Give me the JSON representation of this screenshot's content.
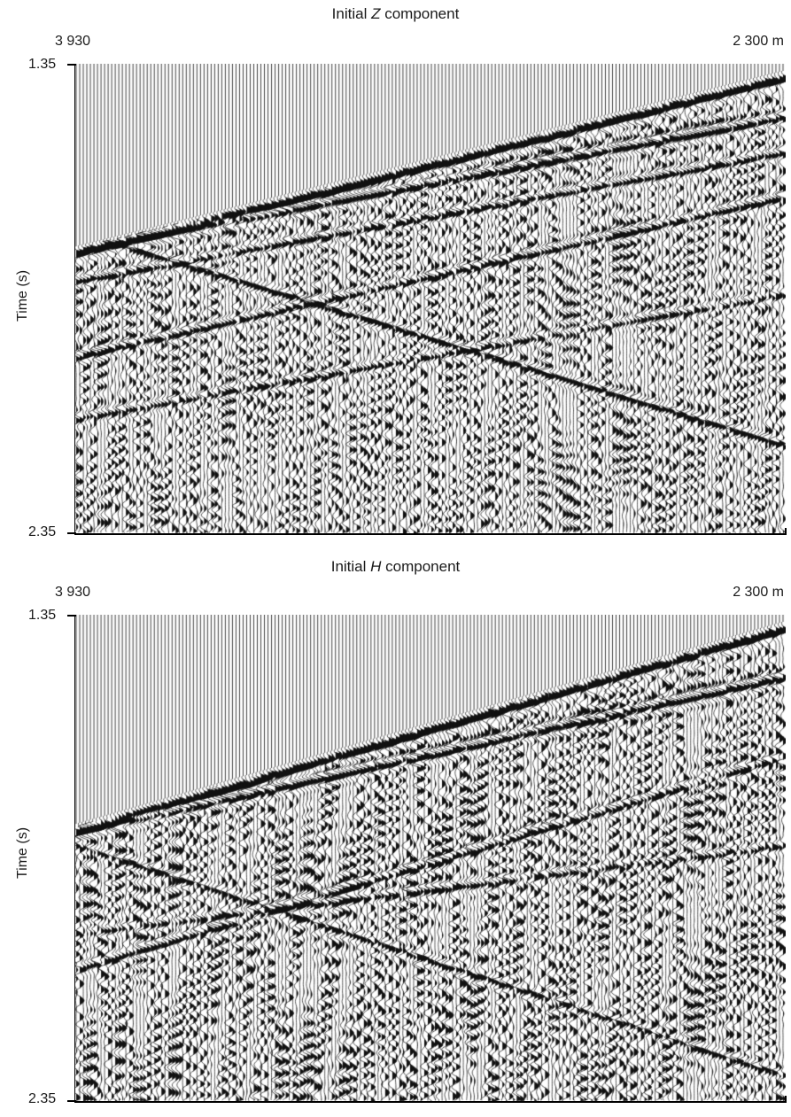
{
  "panels": [
    {
      "title_pre": "Initial ",
      "title_var": "Z",
      "title_post": " component",
      "x_left_label": "3 930",
      "x_right_label": "2 300 m",
      "y_top_label": "1.35",
      "y_bottom_label": "2.35",
      "y_axis_label": "Time (s)"
    },
    {
      "title_pre": "Initial ",
      "title_var": "H",
      "title_post": " component",
      "x_left_label": "3 930",
      "x_right_label": "2 300 m",
      "y_top_label": "1.35",
      "y_bottom_label": "2.35",
      "y_axis_label": "Time (s)"
    }
  ],
  "colors": {
    "ink": "#111111",
    "paper": "#ffffff"
  }
}
